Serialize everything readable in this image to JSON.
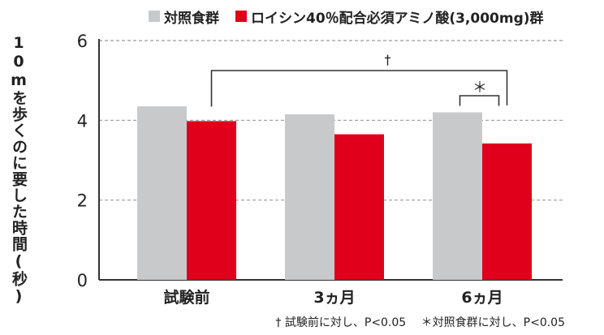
{
  "chart_data": {
    "type": "bar",
    "title": "",
    "xlabel": "",
    "ylabel": "10mを歩くのに要した時間(秒)",
    "categories": [
      "試験前",
      "3ヵ月",
      "6ヵ月"
    ],
    "series": [
      {
        "name": "対照食群",
        "color": "#c8c9ca",
        "values": [
          4.35,
          4.15,
          4.2
        ]
      },
      {
        "name": "ロイシン40％配合必須アミノ酸(3,000mg)群",
        "color": "#e0001b",
        "values": [
          3.98,
          3.65,
          3.42
        ]
      }
    ],
    "ylim": [
      0,
      6
    ],
    "yticks": [
      0,
      2,
      4,
      6
    ],
    "grid": true,
    "legend": "top",
    "annotations": {
      "dagger": "†",
      "asterisk": "＊"
    },
    "footnotes": [
      "† 試験前に対し、P<0.05",
      "＊対照食群に対し、P<0.05"
    ]
  }
}
